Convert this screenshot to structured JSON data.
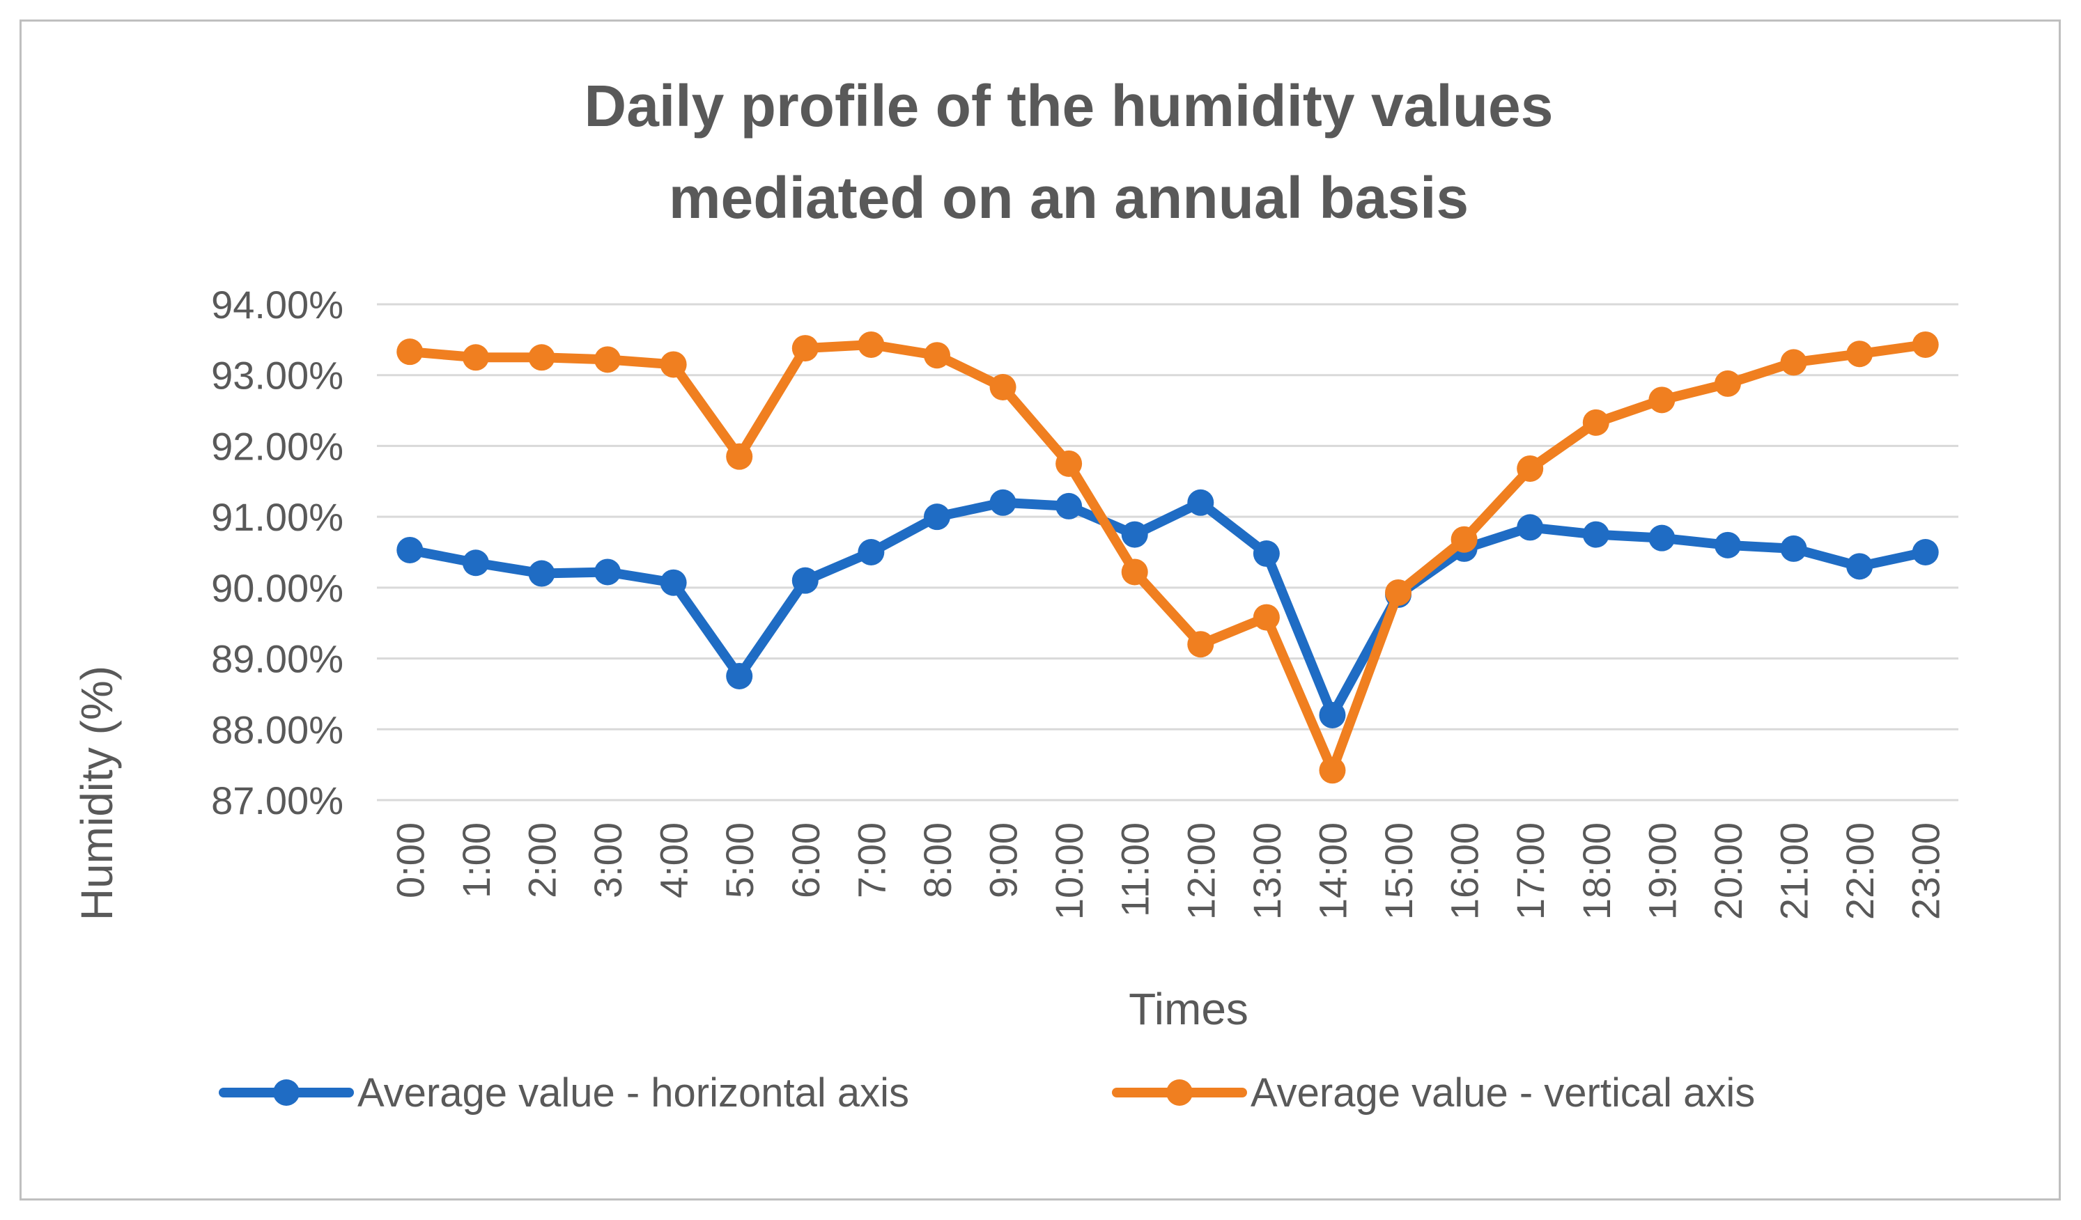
{
  "chart_data": {
    "type": "line",
    "title_lines": [
      "Daily profile of the humidity values",
      "mediated on an annual basis"
    ],
    "xlabel": "Times",
    "ylabel": "Humidity  (%)",
    "ylim": [
      87,
      94
    ],
    "y_ticks": [
      {
        "value": 94,
        "label": "94.00%"
      },
      {
        "value": 93,
        "label": "93.00%"
      },
      {
        "value": 92,
        "label": "92.00%"
      },
      {
        "value": 91,
        "label": "91.00%"
      },
      {
        "value": 90,
        "label": "90.00%"
      },
      {
        "value": 89,
        "label": "89.00%"
      },
      {
        "value": 88,
        "label": "88.00%"
      },
      {
        "value": 87,
        "label": "87.00%"
      }
    ],
    "categories": [
      "0:00",
      "1:00",
      "2:00",
      "3:00",
      "4:00",
      "5:00",
      "6:00",
      "7:00",
      "8:00",
      "9:00",
      "10:00",
      "11:00",
      "12:00",
      "13:00",
      "14:00",
      "15:00",
      "16:00",
      "17:00",
      "18:00",
      "19:00",
      "20:00",
      "21:00",
      "22:00",
      "23:00"
    ],
    "grid": true,
    "legend_position": "bottom",
    "series": [
      {
        "name": "Average value - horizontal axis",
        "color": "#1f6cc4",
        "values": [
          90.53,
          90.35,
          90.2,
          90.22,
          90.07,
          88.75,
          90.1,
          90.5,
          91.0,
          91.2,
          91.15,
          90.75,
          91.2,
          90.48,
          88.2,
          89.9,
          90.55,
          90.85,
          90.75,
          90.7,
          90.6,
          90.55,
          90.3,
          90.5
        ]
      },
      {
        "name": "Average value - vertical axis",
        "color": "#f07f20",
        "values": [
          93.33,
          93.25,
          93.25,
          93.22,
          93.15,
          91.85,
          93.38,
          93.43,
          93.28,
          92.83,
          91.75,
          90.22,
          89.2,
          89.58,
          87.42,
          89.93,
          90.68,
          91.68,
          92.33,
          92.65,
          92.88,
          93.18,
          93.3,
          93.43
        ]
      }
    ]
  }
}
